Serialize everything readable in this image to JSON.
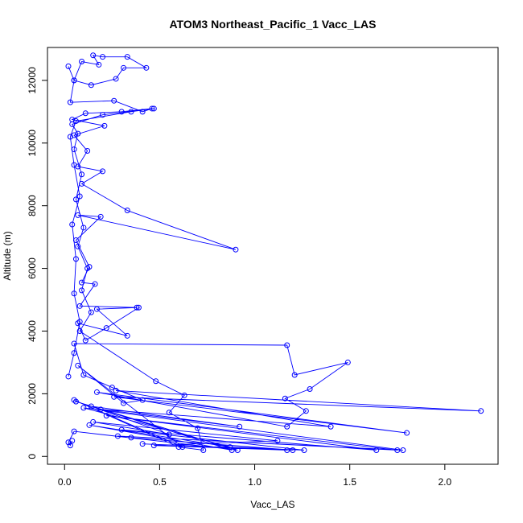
{
  "chart_data": {
    "type": "line",
    "title": "ATOM3 Northeast_Pacific_1 Vacc_LAS",
    "xlabel": "Vacc_LAS",
    "ylabel": "Altitude (m)",
    "xlim": [
      -0.09,
      2.28
    ],
    "ylim": [
      -250,
      13050
    ],
    "xticks": [
      0.0,
      0.5,
      1.0,
      1.5,
      2.0
    ],
    "xtick_labels": [
      "0.0",
      "0.5",
      "1.0",
      "1.5",
      "2.0"
    ],
    "yticks": [
      0,
      2000,
      4000,
      6000,
      8000,
      10000,
      12000
    ],
    "ytick_labels": [
      "0",
      "2000",
      "4000",
      "6000",
      "8000",
      "10000",
      "12000"
    ],
    "grid": false,
    "legend": "none",
    "colors": {
      "series": "#0000ff",
      "axis": "#000000",
      "background": "#ffffff"
    },
    "marker": "open-circle",
    "series": [
      {
        "points": [
          [
            0.02,
            2550
          ],
          [
            0.05,
            3300
          ],
          [
            0.08,
            4300
          ],
          [
            0.05,
            5200
          ],
          [
            0.06,
            6300
          ],
          [
            0.04,
            7400
          ],
          [
            0.08,
            8300
          ],
          [
            0.05,
            9300
          ],
          [
            0.03,
            10200
          ],
          [
            0.06,
            10700
          ],
          [
            0.35,
            11000
          ],
          [
            0.47,
            11100
          ],
          [
            0.2,
            10900
          ],
          [
            0.04,
            10600
          ],
          [
            0.07,
            10300
          ],
          [
            0.05,
            9800
          ],
          [
            0.09,
            9000
          ],
          [
            0.06,
            8200
          ],
          [
            0.1,
            7300
          ],
          [
            0.07,
            6700
          ],
          [
            0.12,
            6000
          ],
          [
            0.09,
            5300
          ],
          [
            0.14,
            4600
          ],
          [
            0.08,
            4000
          ],
          [
            0.48,
            2400
          ],
          [
            0.63,
            1950
          ],
          [
            0.55,
            1400
          ],
          [
            0.7,
            900
          ],
          [
            0.73,
            200
          ],
          [
            0.6,
            300
          ],
          [
            0.05,
            1800
          ],
          [
            0.62,
            300
          ],
          [
            0.07,
            2900
          ],
          [
            0.31,
            1700
          ],
          [
            0.41,
            1800
          ],
          [
            0.25,
            2200
          ],
          [
            0.1,
            2600
          ],
          [
            0.05,
            3600
          ],
          [
            1.17,
            3550
          ],
          [
            1.21,
            2600
          ],
          [
            1.49,
            3000
          ],
          [
            1.29,
            2150
          ],
          [
            1.16,
            1850
          ],
          [
            1.27,
            1450
          ],
          [
            1.17,
            950
          ],
          [
            0.17,
            2050
          ],
          [
            1.8,
            750
          ],
          [
            0.26,
            1900
          ],
          [
            2.19,
            1450
          ],
          [
            0.27,
            2100
          ],
          [
            1.4,
            950
          ],
          [
            0.19,
            1500
          ],
          [
            0.92,
            950
          ],
          [
            0.14,
            1600
          ],
          [
            0.55,
            700
          ],
          [
            0.15,
            1100
          ],
          [
            1.12,
            500
          ],
          [
            0.47,
            350
          ],
          [
            1.17,
            200
          ],
          [
            0.35,
            600
          ],
          [
            1.2,
            200
          ],
          [
            0.41,
            400
          ],
          [
            1.26,
            200
          ],
          [
            0.3,
            850
          ],
          [
            1.64,
            200
          ],
          [
            0.22,
            1300
          ],
          [
            1.75,
            200
          ],
          [
            0.28,
            650
          ],
          [
            1.78,
            200
          ],
          [
            0.1,
            1550
          ],
          [
            0.87,
            300
          ],
          [
            0.13,
            1000
          ],
          [
            0.88,
            200
          ],
          [
            0.06,
            1750
          ],
          [
            0.91,
            200
          ],
          [
            0.05,
            800
          ],
          [
            0.02,
            450
          ],
          [
            0.03,
            350
          ],
          [
            0.04,
            500
          ]
        ]
      },
      {
        "points": [
          [
            0.02,
            12450
          ],
          [
            0.05,
            12000
          ],
          [
            0.14,
            11850
          ],
          [
            0.27,
            12050
          ],
          [
            0.31,
            12400
          ],
          [
            0.43,
            12400
          ],
          [
            0.33,
            12750
          ],
          [
            0.2,
            12750
          ],
          [
            0.15,
            12800
          ],
          [
            0.18,
            12500
          ],
          [
            0.09,
            12600
          ],
          [
            0.05,
            12000
          ],
          [
            0.03,
            11300
          ],
          [
            0.26,
            11350
          ],
          [
            0.41,
            11000
          ],
          [
            0.46,
            11100
          ],
          [
            0.3,
            11000
          ],
          [
            0.11,
            10950
          ],
          [
            0.04,
            10750
          ],
          [
            0.21,
            10550
          ],
          [
            0.05,
            10250
          ],
          [
            0.12,
            9750
          ],
          [
            0.07,
            9250
          ],
          [
            0.2,
            9100
          ],
          [
            0.09,
            8700
          ],
          [
            0.33,
            7850
          ],
          [
            0.9,
            6600
          ],
          [
            0.07,
            7700
          ],
          [
            0.19,
            7650
          ],
          [
            0.06,
            6900
          ],
          [
            0.13,
            6050
          ],
          [
            0.09,
            5550
          ],
          [
            0.16,
            5500
          ],
          [
            0.08,
            4800
          ],
          [
            0.38,
            4750
          ],
          [
            0.17,
            4700
          ],
          [
            0.33,
            3850
          ],
          [
            0.07,
            4250
          ],
          [
            0.11,
            3700
          ],
          [
            0.22,
            4100
          ],
          [
            0.39,
            4750
          ]
        ]
      }
    ]
  }
}
